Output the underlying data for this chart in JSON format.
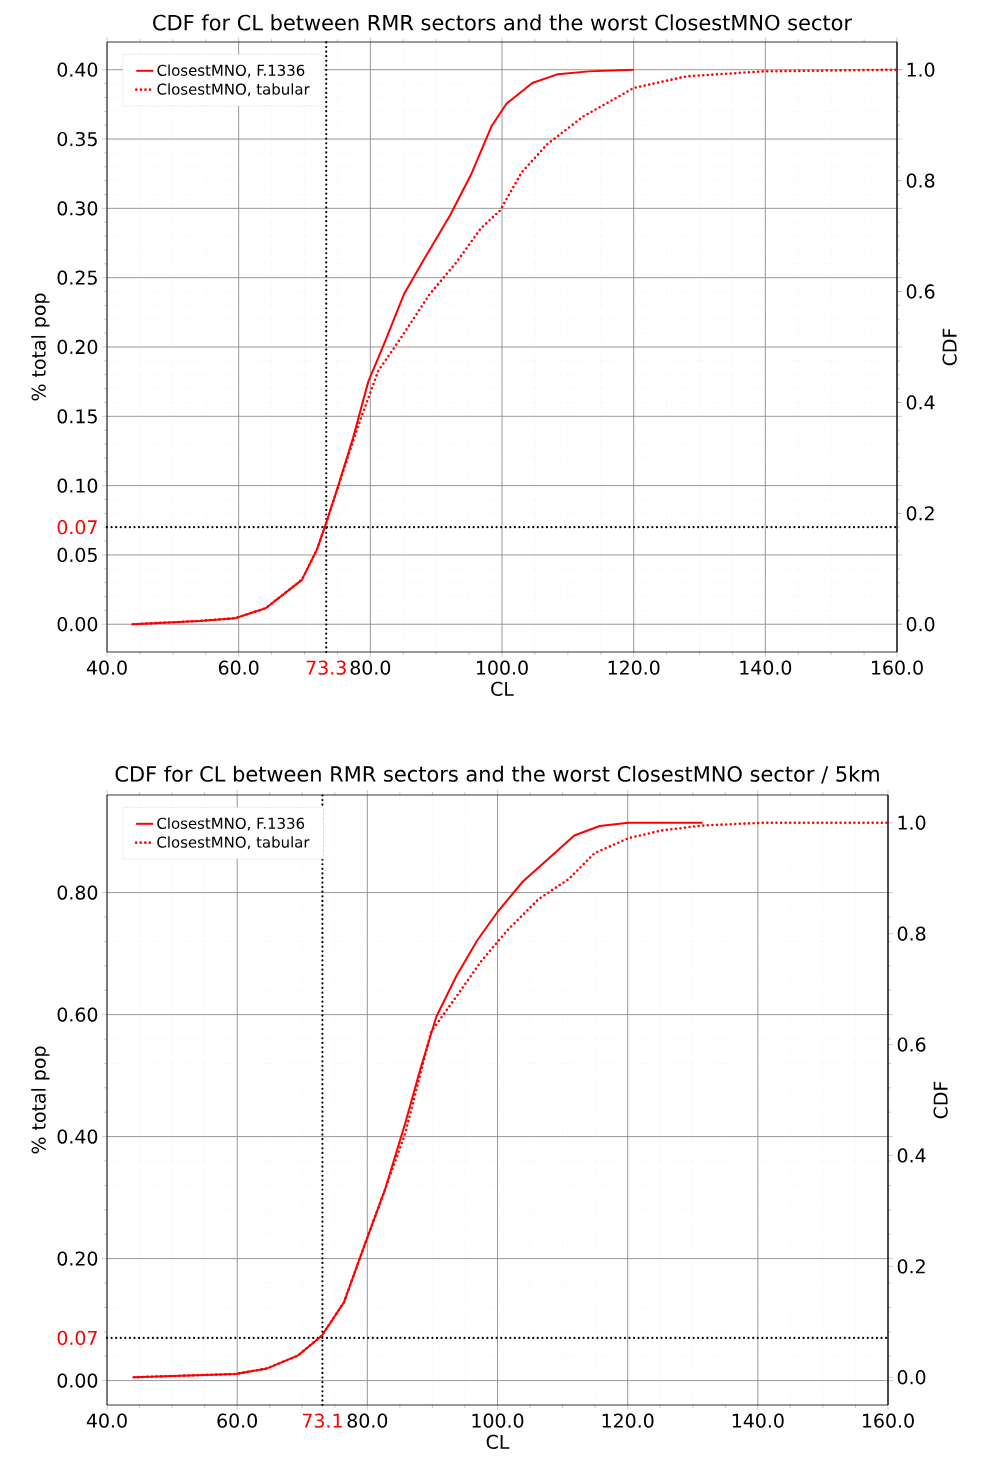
{
  "chart_data": [
    {
      "type": "line",
      "title": "CDF for CL between RMR sectors and the worst ClosestMNO sector",
      "xlabel": "CL",
      "ylabel": "% total pop",
      "y2label": "CDF",
      "xlim": [
        40,
        160
      ],
      "xticks": [
        {
          "value": 40,
          "label": "40.0"
        },
        {
          "value": 60,
          "label": "60.0"
        },
        {
          "value": 80,
          "label": "80.0"
        },
        {
          "value": 100,
          "label": "100.0"
        },
        {
          "value": 120,
          "label": "120.0"
        },
        {
          "value": 140,
          "label": "140.0"
        },
        {
          "value": 160,
          "label": "160.0"
        }
      ],
      "ylim": [
        -0.02,
        0.42
      ],
      "yticks": [
        {
          "value": 0,
          "label": "0.00"
        },
        {
          "value": 0.05,
          "label": "0.05"
        },
        {
          "value": 0.1,
          "label": "0.10"
        },
        {
          "value": 0.15,
          "label": "0.15"
        },
        {
          "value": 0.2,
          "label": "0.20"
        },
        {
          "value": 0.25,
          "label": "0.25"
        },
        {
          "value": 0.3,
          "label": "0.30"
        },
        {
          "value": 0.35,
          "label": "0.35"
        },
        {
          "value": 0.4,
          "label": "0.40"
        }
      ],
      "y2lim": [
        -0.05,
        1.05
      ],
      "y2ticks": [
        {
          "value": 0,
          "label": "0.0"
        },
        {
          "value": 0.2,
          "label": "0.2"
        },
        {
          "value": 0.4,
          "label": "0.4"
        },
        {
          "value": 0.6,
          "label": "0.6"
        },
        {
          "value": 0.8,
          "label": "0.8"
        },
        {
          "value": 1,
          "label": "1.0"
        }
      ],
      "grid": true,
      "legend": "top left",
      "marker": "none",
      "ref_lines": [
        {
          "axis": "x",
          "value": 73.3,
          "label": "73.3",
          "color": "#000000",
          "line_style": "dotted"
        },
        {
          "axis": "y",
          "value": 0.07,
          "label": "0.07",
          "color": "#000000",
          "line_style": "dotted"
        }
      ],
      "series": [
        {
          "name": "ClosestMNO, F.1336",
          "color": "#ff0000",
          "axis": "y2",
          "line_style": "solid",
          "x": [
            43.9,
            54.0,
            59.5,
            64.1,
            69.6,
            71.9,
            73.1,
            75.0,
            77.4,
            79.7,
            82.0,
            85.1,
            88.2,
            92.1,
            95.3,
            98.4,
            100.7,
            104.6,
            108.5,
            113.2,
            120.0
          ],
          "values": [
            0,
            0.006,
            0.011,
            0.029,
            0.08,
            0.135,
            0.176,
            0.245,
            0.337,
            0.438,
            0.503,
            0.595,
            0.659,
            0.737,
            0.811,
            0.898,
            0.939,
            0.976,
            0.992,
            0.997,
            1.0
          ]
        },
        {
          "name": "ClosestMNO, tabular",
          "color": "#ff0000",
          "axis": "y2",
          "line_style": "dotted",
          "x": [
            43.9,
            54.0,
            59.5,
            64.1,
            69.6,
            71.9,
            73.1,
            75.8,
            78.1,
            81.2,
            84.4,
            89.0,
            92.9,
            96.8,
            99.7,
            103.0,
            106.9,
            112.4,
            120.0,
            128.0,
            139.6,
            159.9
          ],
          "values": [
            0,
            0.006,
            0.011,
            0.029,
            0.08,
            0.135,
            0.176,
            0.273,
            0.356,
            0.457,
            0.512,
            0.595,
            0.65,
            0.714,
            0.746,
            0.815,
            0.866,
            0.916,
            0.967,
            0.988,
            0.997,
            1.0
          ]
        }
      ]
    },
    {
      "type": "line",
      "title": "CDF for CL between RMR sectors and the worst ClosestMNO sector / 5km",
      "xlabel": "CL",
      "ylabel": "% total pop",
      "y2label": "CDF",
      "xlim": [
        40,
        160
      ],
      "xticks": [
        {
          "value": 40,
          "label": "40.0"
        },
        {
          "value": 60,
          "label": "60.0"
        },
        {
          "value": 80,
          "label": "80.0"
        },
        {
          "value": 100,
          "label": "100.0"
        },
        {
          "value": 120,
          "label": "120.0"
        },
        {
          "value": 140,
          "label": "140.0"
        },
        {
          "value": 160,
          "label": "160.0"
        }
      ],
      "ylim": [
        -0.04,
        0.96
      ],
      "yticks": [
        {
          "value": 0,
          "label": "0.00"
        },
        {
          "value": 0.2,
          "label": "0.20"
        },
        {
          "value": 0.4,
          "label": "0.40"
        },
        {
          "value": 0.6,
          "label": "0.60"
        },
        {
          "value": 0.8,
          "label": "0.80"
        }
      ],
      "y2lim": [
        -0.05,
        1.05
      ],
      "y2ticks": [
        {
          "value": 0,
          "label": "0.0"
        },
        {
          "value": 0.2,
          "label": "0.2"
        },
        {
          "value": 0.4,
          "label": "0.4"
        },
        {
          "value": 0.6,
          "label": "0.6"
        },
        {
          "value": 0.8,
          "label": "0.8"
        },
        {
          "value": 1,
          "label": "1.0"
        }
      ],
      "grid": true,
      "legend": "top left",
      "marker": "none",
      "ref_lines": [
        {
          "axis": "x",
          "value": 73.1,
          "label": "73.1",
          "color": "#000000",
          "line_style": "dotted"
        },
        {
          "axis": "y",
          "value": 0.07,
          "label": "0.07",
          "color": "#000000",
          "line_style": "dotted"
        }
      ],
      "series": [
        {
          "name": "ClosestMNO, F.1336",
          "color": "#ff0000",
          "axis": "y2",
          "line_style": "solid",
          "x": [
            44.1,
            59.8,
            64.6,
            69.3,
            73.0,
            76.4,
            79.5,
            82.7,
            85.8,
            88.2,
            90.6,
            93.7,
            96.9,
            100.0,
            103.9,
            107.9,
            111.8,
            115.7,
            120.1,
            131.5
          ],
          "values": [
            0,
            0.006,
            0.016,
            0.039,
            0.075,
            0.135,
            0.236,
            0.338,
            0.457,
            0.558,
            0.65,
            0.724,
            0.788,
            0.839,
            0.894,
            0.936,
            0.977,
            0.994,
            1.0,
            1.0
          ]
        },
        {
          "name": "ClosestMNO, tabular",
          "color": "#ff0000",
          "axis": "y2",
          "line_style": "dotted",
          "x": [
            44.1,
            59.8,
            64.6,
            69.3,
            73.0,
            76.4,
            79.5,
            82.7,
            85.8,
            89.8,
            93.7,
            97.6,
            101.6,
            106.3,
            111.0,
            114.9,
            120.1,
            125.2,
            131.5,
            141.0,
            159.8
          ],
          "values": [
            0,
            0.006,
            0.016,
            0.039,
            0.075,
            0.135,
            0.236,
            0.338,
            0.439,
            0.623,
            0.687,
            0.752,
            0.807,
            0.862,
            0.899,
            0.945,
            0.972,
            0.986,
            0.995,
            1.0,
            1.0
          ]
        }
      ]
    }
  ]
}
